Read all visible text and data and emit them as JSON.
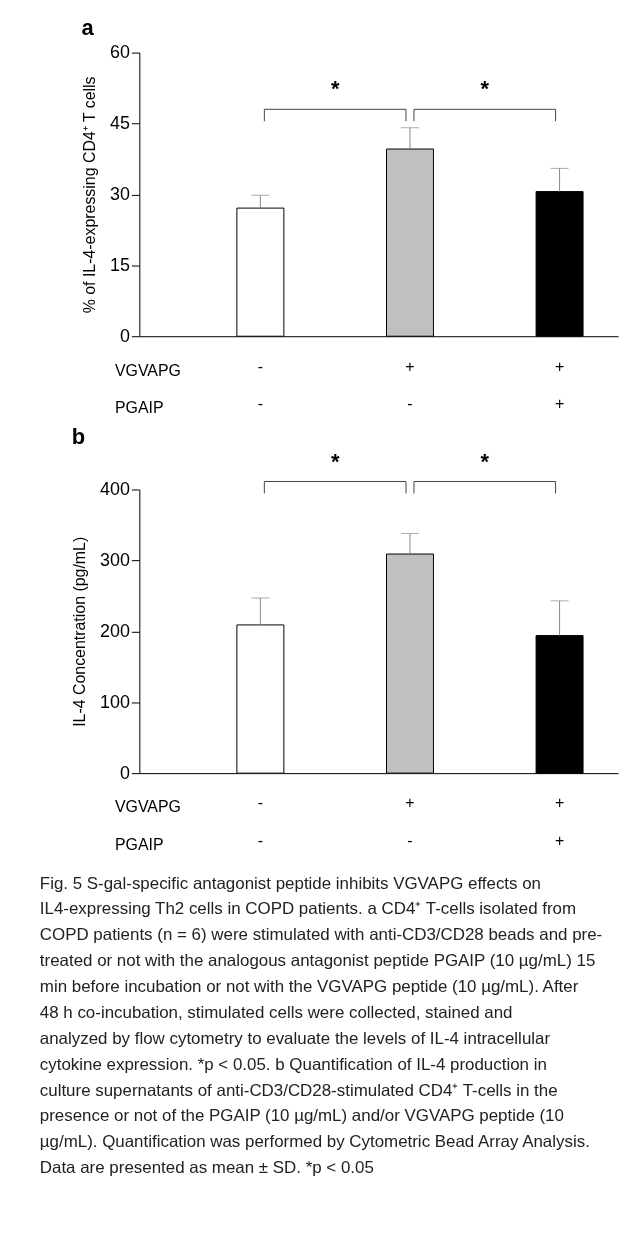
{
  "chart_data": [
    {
      "type": "bar",
      "title": "a",
      "ylabel": "% of IL-4-expressing CD4⁺ T cells",
      "xlabel": "VGVAPG\nPGAIP",
      "categories": [
        "-\n-",
        "+\n-",
        "+\n+"
      ],
      "values": [
        27.1,
        39.6,
        30.6
      ],
      "errors": [
        2.7,
        4.5,
        4.9
      ],
      "colors": [
        "#ffffff",
        "#c0c0c0",
        "#000000"
      ],
      "ylim": [
        0,
        60
      ],
      "yticks": [
        0,
        15,
        30,
        45,
        60
      ],
      "grid": false,
      "annotations": [
        "*",
        "*"
      ]
    },
    {
      "type": "bar",
      "title": "b",
      "ylabel": "IL-4 Concentration (pg/mL)",
      "xlabel": "VGVAPG\nPGAIP",
      "categories": [
        "-\n-",
        "+\n-",
        "+\n+"
      ],
      "values": [
        209,
        309,
        194
      ],
      "errors": [
        38,
        29,
        49
      ],
      "colors": [
        "#ffffff",
        "#c0c0c0",
        "#000000"
      ],
      "ylim": [
        0,
        400
      ],
      "yticks": [
        0,
        100,
        200,
        300,
        400
      ],
      "grid": false,
      "annotations": [
        "*",
        "*",
        "Fig. 5  S-gal-specific antagonist peptide inhibits VGVAPG effects on IL4-expressing Th2 cells in COPD patients. a CD4⁺ T-cells isolated from COPD patients (n = 6) were stimulated with anti-CD3/CD28 beads and pre-treated or not with the analogous antagonist peptide PGAIP (10 µg/mL) 15 min before incubation or not with the VGVAPG peptide (10 µg/mL). After 48 h co-incubation, stimulated cells were collected, stained and analyzed by flow cytometry to evaluate the levels of IL-4 intracellular cytokine expression. *p < 0.05. b Quantification of IL-4 production in culture supernatants of anti-CD3/CD28-stimulated CD4⁺ T-cells in the presence or not of the PGAIP (10 µg/mL) and/or VGVAPG peptide (10 µg/mL). Quantification was performed by Cytometric Bead Array Analysis. Data are presented as mean ± SD. *p < 0.05"
      ]
    }
  ]
}
